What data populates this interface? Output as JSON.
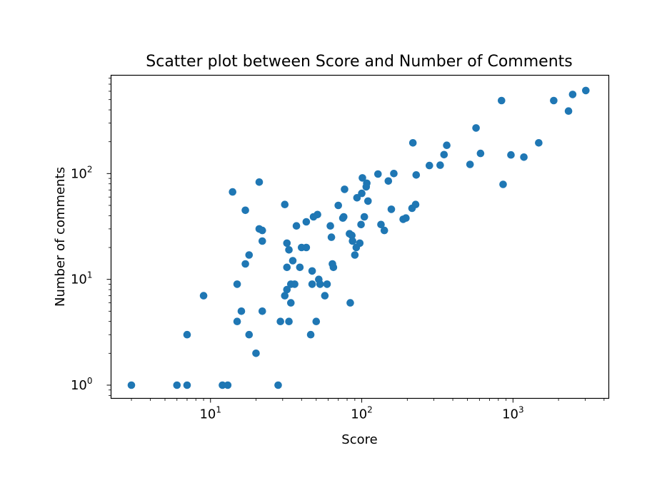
{
  "chart_data": {
    "type": "scatter",
    "title": "Scatter plot between Score and Number of Comments",
    "xlabel": "Score",
    "ylabel": "Number of comments",
    "xscale": "log",
    "yscale": "log",
    "xlim": [
      2.2,
      4300
    ],
    "ylim": [
      0.75,
      850
    ],
    "x_ticks": [
      {
        "value": 10,
        "base": "10",
        "exp": "1"
      },
      {
        "value": 100,
        "base": "10",
        "exp": "2"
      },
      {
        "value": 1000,
        "base": "10",
        "exp": "3"
      }
    ],
    "y_ticks": [
      {
        "value": 1,
        "base": "10",
        "exp": "0"
      },
      {
        "value": 10,
        "base": "10",
        "exp": "1"
      },
      {
        "value": 100,
        "base": "10",
        "exp": "2"
      }
    ],
    "grid": false,
    "legend": "none",
    "marker_color": "#1f77b4",
    "points": [
      [
        3,
        1
      ],
      [
        6,
        1
      ],
      [
        7,
        1
      ],
      [
        12,
        1
      ],
      [
        13,
        1
      ],
      [
        28,
        1
      ],
      [
        7,
        3
      ],
      [
        9,
        7
      ],
      [
        14,
        67
      ],
      [
        15,
        9
      ],
      [
        15,
        4
      ],
      [
        16,
        5
      ],
      [
        17,
        14
      ],
      [
        17,
        45
      ],
      [
        18,
        17
      ],
      [
        18,
        3
      ],
      [
        20,
        2
      ],
      [
        21,
        83
      ],
      [
        21,
        30
      ],
      [
        22,
        29
      ],
      [
        22,
        23
      ],
      [
        22,
        5
      ],
      [
        29,
        4
      ],
      [
        31,
        51
      ],
      [
        31,
        7
      ],
      [
        32,
        22
      ],
      [
        32,
        8
      ],
      [
        32,
        13
      ],
      [
        33,
        19
      ],
      [
        33,
        4
      ],
      [
        34,
        6
      ],
      [
        34,
        9
      ],
      [
        35,
        15
      ],
      [
        36,
        9
      ],
      [
        37,
        32
      ],
      [
        39,
        13
      ],
      [
        40,
        20
      ],
      [
        43,
        20
      ],
      [
        43,
        35
      ],
      [
        46,
        3
      ],
      [
        47,
        12
      ],
      [
        47,
        9
      ],
      [
        48,
        39
      ],
      [
        50,
        4
      ],
      [
        51,
        41
      ],
      [
        52,
        10
      ],
      [
        53,
        9
      ],
      [
        57,
        7
      ],
      [
        59,
        9
      ],
      [
        62,
        32
      ],
      [
        63,
        25
      ],
      [
        64,
        14
      ],
      [
        65,
        13
      ],
      [
        70,
        50
      ],
      [
        75,
        38
      ],
      [
        76,
        39
      ],
      [
        77,
        71
      ],
      [
        83,
        27
      ],
      [
        84,
        6
      ],
      [
        86,
        26
      ],
      [
        87,
        23
      ],
      [
        90,
        17
      ],
      [
        92,
        20
      ],
      [
        93,
        59
      ],
      [
        97,
        22
      ],
      [
        99,
        33
      ],
      [
        100,
        65
      ],
      [
        101,
        91
      ],
      [
        104,
        39
      ],
      [
        107,
        75
      ],
      [
        108,
        81
      ],
      [
        110,
        55
      ],
      [
        128,
        99
      ],
      [
        134,
        33
      ],
      [
        141,
        29
      ],
      [
        150,
        85
      ],
      [
        157,
        46
      ],
      [
        163,
        100
      ],
      [
        188,
        37
      ],
      [
        196,
        38
      ],
      [
        215,
        47
      ],
      [
        218,
        195
      ],
      [
        227,
        51
      ],
      [
        229,
        97
      ],
      [
        280,
        119
      ],
      [
        330,
        120
      ],
      [
        350,
        151
      ],
      [
        365,
        185
      ],
      [
        520,
        122
      ],
      [
        570,
        270
      ],
      [
        610,
        155
      ],
      [
        840,
        490
      ],
      [
        860,
        79
      ],
      [
        970,
        150
      ],
      [
        1180,
        143
      ],
      [
        1480,
        195
      ],
      [
        1860,
        490
      ],
      [
        2330,
        390
      ],
      [
        2480,
        560
      ],
      [
        3030,
        610
      ]
    ]
  }
}
